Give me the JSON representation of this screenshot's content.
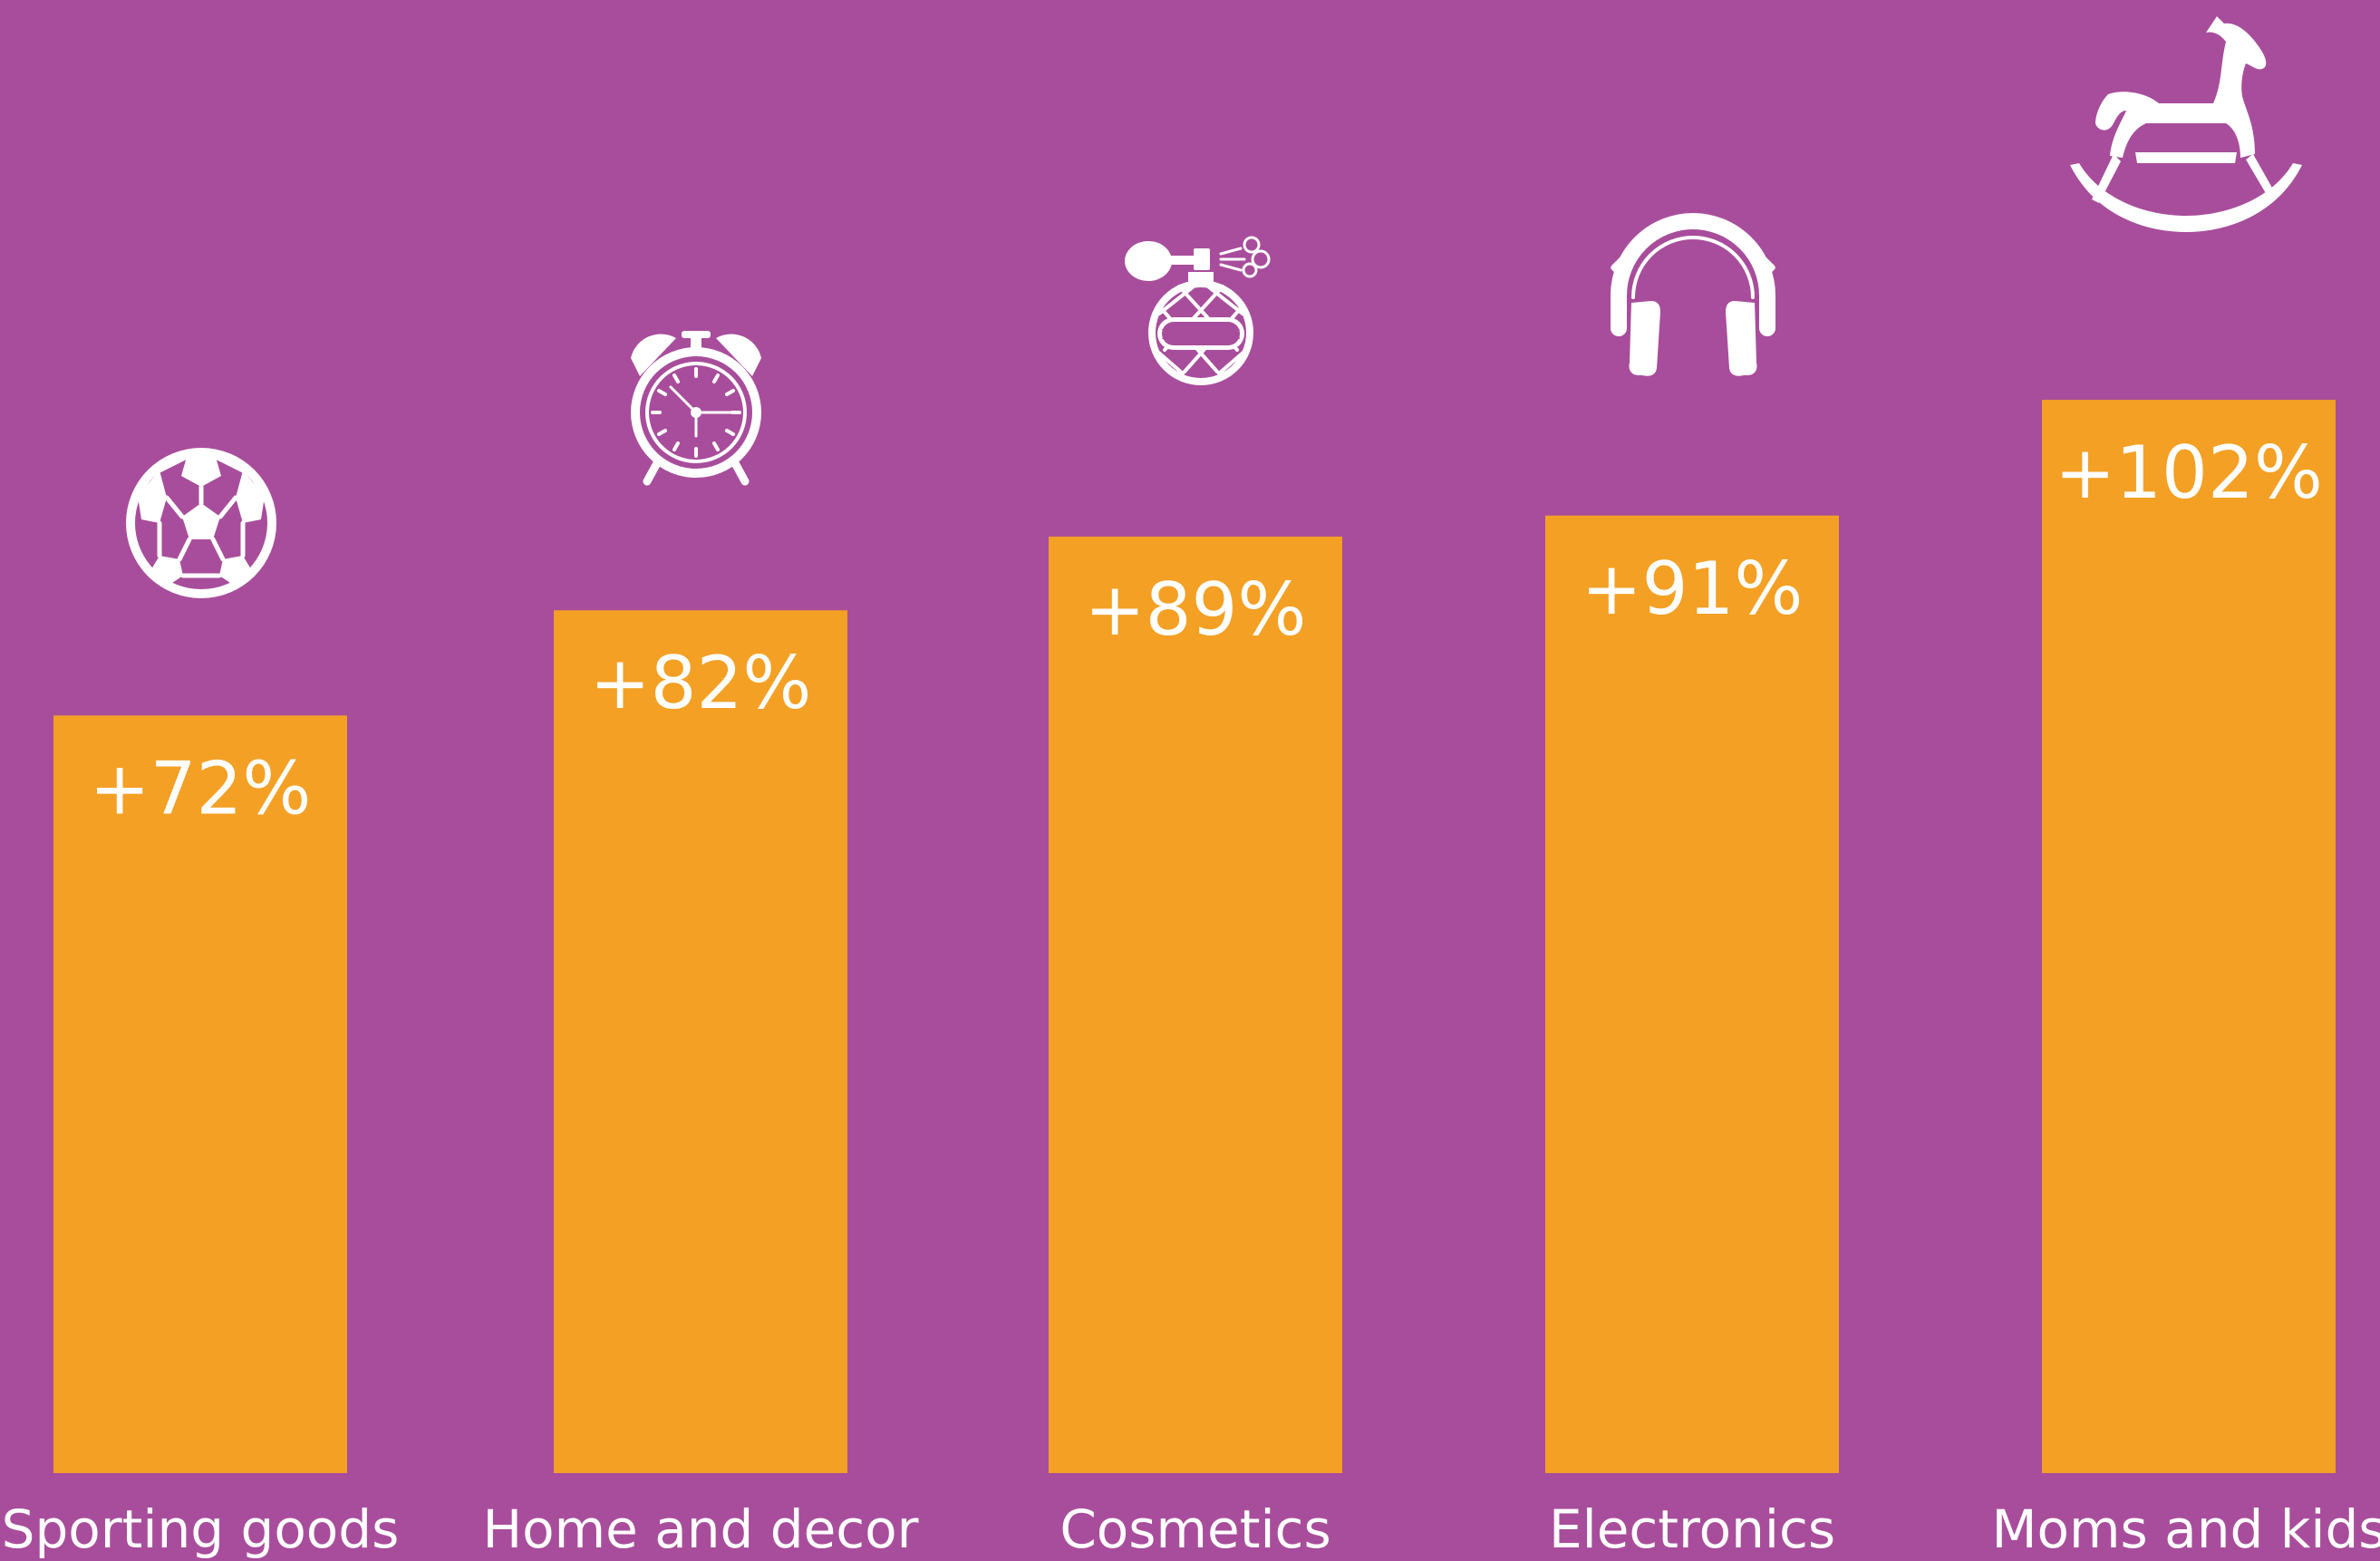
{
  "chart_data": {
    "type": "bar",
    "categories": [
      "Sporting goods",
      "Home and decor",
      "Cosmetics",
      "Electronics",
      "Moms and kids"
    ],
    "values": [
      72,
      82,
      89,
      91,
      102
    ],
    "value_labels": [
      "+72%",
      "+82%",
      "+89%",
      "+91%",
      "+102%"
    ],
    "title": "",
    "xlabel": "",
    "ylabel": "",
    "ylim": [
      0,
      140
    ],
    "grid": false,
    "legend": "none",
    "icons": [
      "soccer-ball-icon",
      "alarm-clock-icon",
      "perfume-bottle-icon",
      "headphones-icon",
      "rocking-horse-icon"
    ],
    "icon_text": {
      "perfume": "PERFUME"
    }
  },
  "colors": {
    "background": "#A84D9B",
    "bar": "#F3A024",
    "text": "#FFFFFF",
    "icon": "#FFFFFF",
    "perfume_label": "#A84D9B"
  }
}
